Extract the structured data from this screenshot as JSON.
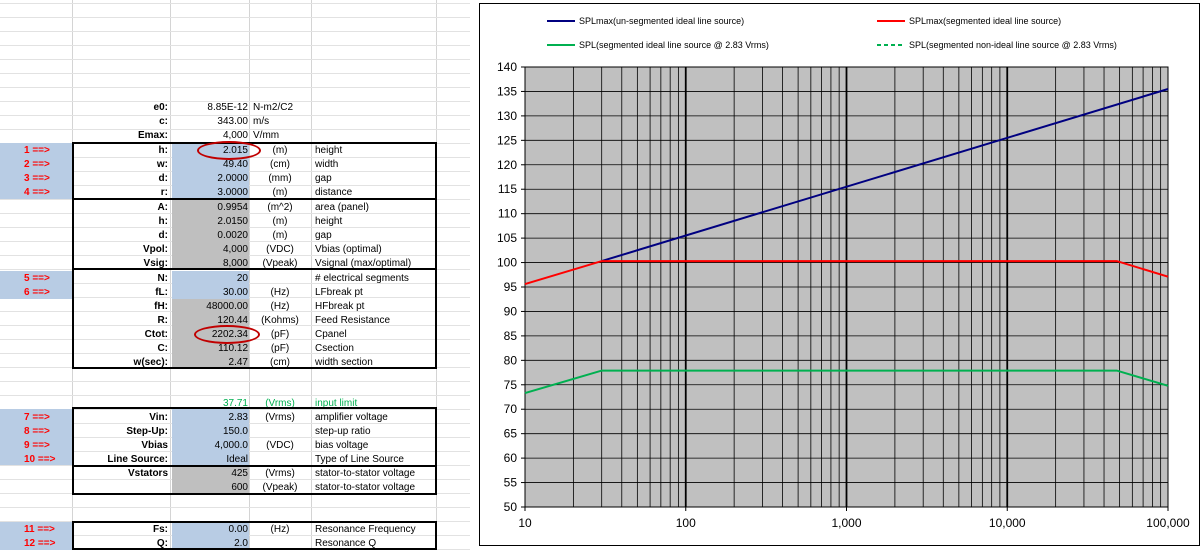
{
  "sheet": {
    "const_rows": [
      {
        "label": "e0:",
        "value": "8.85E-12",
        "unit": "N-m2/C2",
        "desc": ""
      },
      {
        "label": "c:",
        "value": "343.00",
        "unit": "m/s",
        "desc": ""
      },
      {
        "label": "Emax:",
        "value": "4,000",
        "unit": "V/mm",
        "desc": ""
      }
    ],
    "input_rows": [
      {
        "arrow": "1 ==>",
        "label": "h:",
        "value": "2.015",
        "unit": "(m)",
        "desc": "height"
      },
      {
        "arrow": "2 ==>",
        "label": "w:",
        "value": "49.40",
        "unit": "(cm)",
        "desc": "width"
      },
      {
        "arrow": "3 ==>",
        "label": "d:",
        "value": "2.0000",
        "unit": "(mm)",
        "desc": "gap"
      },
      {
        "arrow": "4 ==>",
        "label": "r:",
        "value": "3.0000",
        "unit": "(m)",
        "desc": "distance"
      }
    ],
    "calc_rows": [
      {
        "label": "A:",
        "value": "0.9954",
        "unit": "(m^2)",
        "desc": "area (panel)"
      },
      {
        "label": "h:",
        "value": "2.0150",
        "unit": "(m)",
        "desc": "height"
      },
      {
        "label": "d:",
        "value": "0.0020",
        "unit": "(m)",
        "desc": "gap"
      },
      {
        "label": "Vpol:",
        "value": "4,000",
        "unit": "(VDC)",
        "desc": "Vbias (optimal)"
      },
      {
        "label": "Vsig:",
        "value": "8,000",
        "unit": "(Vpeak)",
        "desc": "Vsignal (max/optimal)"
      }
    ],
    "seg_rows": [
      {
        "arrow": "5 ==>",
        "label": "N:",
        "value": "20",
        "unit": "",
        "desc": "# electrical segments"
      },
      {
        "arrow": "6 ==>",
        "label": "fL:",
        "value": "30.00",
        "unit": "(Hz)",
        "desc": "LFbreak pt"
      },
      {
        "arrow": "",
        "label": "fH:",
        "value": "48000.00",
        "unit": "(Hz)",
        "desc": "HFbreak pt"
      },
      {
        "arrow": "",
        "label": "R:",
        "value": "120.44",
        "unit": "(Kohms)",
        "desc": "Feed Resistance"
      },
      {
        "arrow": "",
        "label": "Ctot:",
        "value": "2202.34",
        "unit": "(pF)",
        "desc": "Cpanel"
      },
      {
        "arrow": "",
        "label": "C:",
        "value": "110.12",
        "unit": "(pF)",
        "desc": "Csection"
      }
    ],
    "wsec_row": {
      "label": "w(sec):",
      "value": "2.47",
      "unit": "(cm)",
      "desc": "width section"
    },
    "limit_row": {
      "value": "37.71",
      "unit": "(Vrms)",
      "desc": "input limit"
    },
    "amp_rows": [
      {
        "arrow": "7 ==>",
        "label": "Vin:",
        "value": "2.83",
        "unit": "(Vrms)",
        "desc": "amplifier voltage"
      },
      {
        "arrow": "8 ==>",
        "label": "Step-Up:",
        "value": "150.0",
        "unit": "",
        "desc": "step-up ratio"
      },
      {
        "arrow": "9 ==>",
        "label": "Vbias",
        "value": "4,000.0",
        "unit": "(VDC)",
        "desc": "bias voltage"
      },
      {
        "arrow": "10 ==>",
        "label": "Line Source:",
        "value": "Ideal",
        "unit": "",
        "desc": "Type of Line Source"
      }
    ],
    "stator_rows": [
      {
        "label": "Vstators",
        "value": "425",
        "unit": "(Vrms)",
        "desc": "stator-to-stator voltage"
      },
      {
        "label": "",
        "value": "600",
        "unit": "(Vpeak)",
        "desc": "stator-to-stator voltage"
      }
    ],
    "res_rows": [
      {
        "arrow": "11 ==>",
        "label": "Fs:",
        "value": "0.00",
        "unit": "(Hz)",
        "desc": "Resonance Frequency"
      },
      {
        "arrow": "12 ==>",
        "label": "Q:",
        "value": "2.0",
        "unit": "",
        "desc": "Resonance Q"
      }
    ]
  },
  "colors": {
    "input_band": "#b8cce4",
    "calc_band": "#bfbfbf",
    "arrow_text": "#ff0000",
    "limit_text": "#00b050",
    "highlight_oval": "#c00000",
    "plot_bg": "#c0c0c0"
  },
  "chart_data": {
    "type": "line",
    "title": "",
    "xlabel": "",
    "ylabel": "",
    "x_scale": "log",
    "xlim": [
      10,
      100000
    ],
    "ylim": [
      50,
      140
    ],
    "x_ticks": [
      10,
      100,
      1000,
      10000,
      100000
    ],
    "x_tick_labels": [
      "10",
      "100",
      "1,000",
      "10,000",
      "100,000"
    ],
    "y_ticks": [
      50,
      55,
      60,
      65,
      70,
      75,
      80,
      85,
      90,
      95,
      100,
      105,
      110,
      115,
      120,
      125,
      130,
      135,
      140
    ],
    "y_tick_labels": [
      "50",
      "55",
      "60",
      "65",
      "70",
      "75",
      "80",
      "85",
      "90",
      "95",
      "100",
      "105",
      "110",
      "115",
      "120",
      "125",
      "130",
      "135",
      "140"
    ],
    "grid": true,
    "legend_position": "top",
    "series": [
      {
        "name": "SPLmax(un-segmented ideal line source)",
        "color": "#000080",
        "dash": "solid",
        "x": [
          30,
          100000
        ],
        "y": [
          100.3,
          135.5
        ]
      },
      {
        "name": "SPLmax(segmented ideal line source)",
        "color": "#ff0000",
        "dash": "solid",
        "x": [
          10,
          30,
          48000,
          100000
        ],
        "y": [
          95.6,
          100.3,
          100.3,
          97.1
        ]
      },
      {
        "name": "SPL(segmented ideal line source @ 2.83 Vrms)",
        "color": "#00b050",
        "dash": "solid",
        "x": [
          10,
          30,
          48000,
          100000
        ],
        "y": [
          73.3,
          77.9,
          77.9,
          74.8
        ]
      },
      {
        "name": "SPL(segmented non-ideal line source @ 2.83 Vrms)",
        "color": "#00b050",
        "dash": "dashed",
        "x": [],
        "y": []
      }
    ]
  }
}
